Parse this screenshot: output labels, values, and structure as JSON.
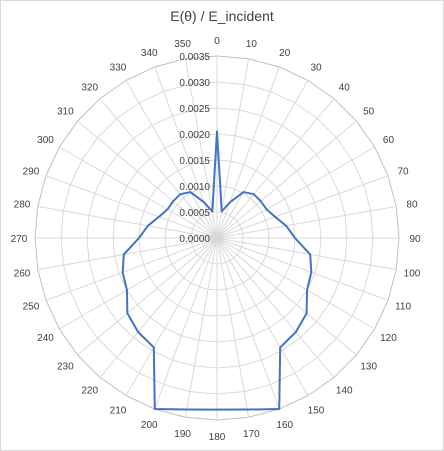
{
  "chart_data": {
    "type": "radar",
    "title": "E(θ) / E_incident",
    "angle_labels": [
      "0",
      "10",
      "20",
      "30",
      "40",
      "50",
      "60",
      "70",
      "80",
      "90",
      "100",
      "110",
      "120",
      "130",
      "140",
      "150",
      "160",
      "170",
      "180",
      "190",
      "200",
      "210",
      "220",
      "230",
      "240",
      "250",
      "260",
      "270",
      "280",
      "290",
      "300",
      "310",
      "320",
      "330",
      "340",
      "350"
    ],
    "radial_labels": [
      "0.0000",
      "0.0005",
      "0.0010",
      "0.0015",
      "0.0020",
      "0.0025",
      "0.0030",
      "0.0035"
    ],
    "rlim": [
      0,
      0.0035
    ],
    "series": [
      {
        "color": "#4472c4",
        "values": [
          0.00205,
          0.00052,
          0.00073,
          0.00102,
          0.0011,
          0.0011,
          0.0011,
          0.00119,
          0.00135,
          0.0015,
          0.00182,
          0.00193,
          0.002,
          0.00225,
          0.00236,
          0.00243,
          0.0035,
          0.00335,
          0.0033,
          0.00335,
          0.0035,
          0.00243,
          0.00236,
          0.00225,
          0.002,
          0.00193,
          0.00182,
          0.0015,
          0.00135,
          0.00119,
          0.0011,
          0.0011,
          0.0011,
          0.00102,
          0.00073,
          0.00052
        ]
      }
    ],
    "grid": true,
    "legend": "none"
  }
}
